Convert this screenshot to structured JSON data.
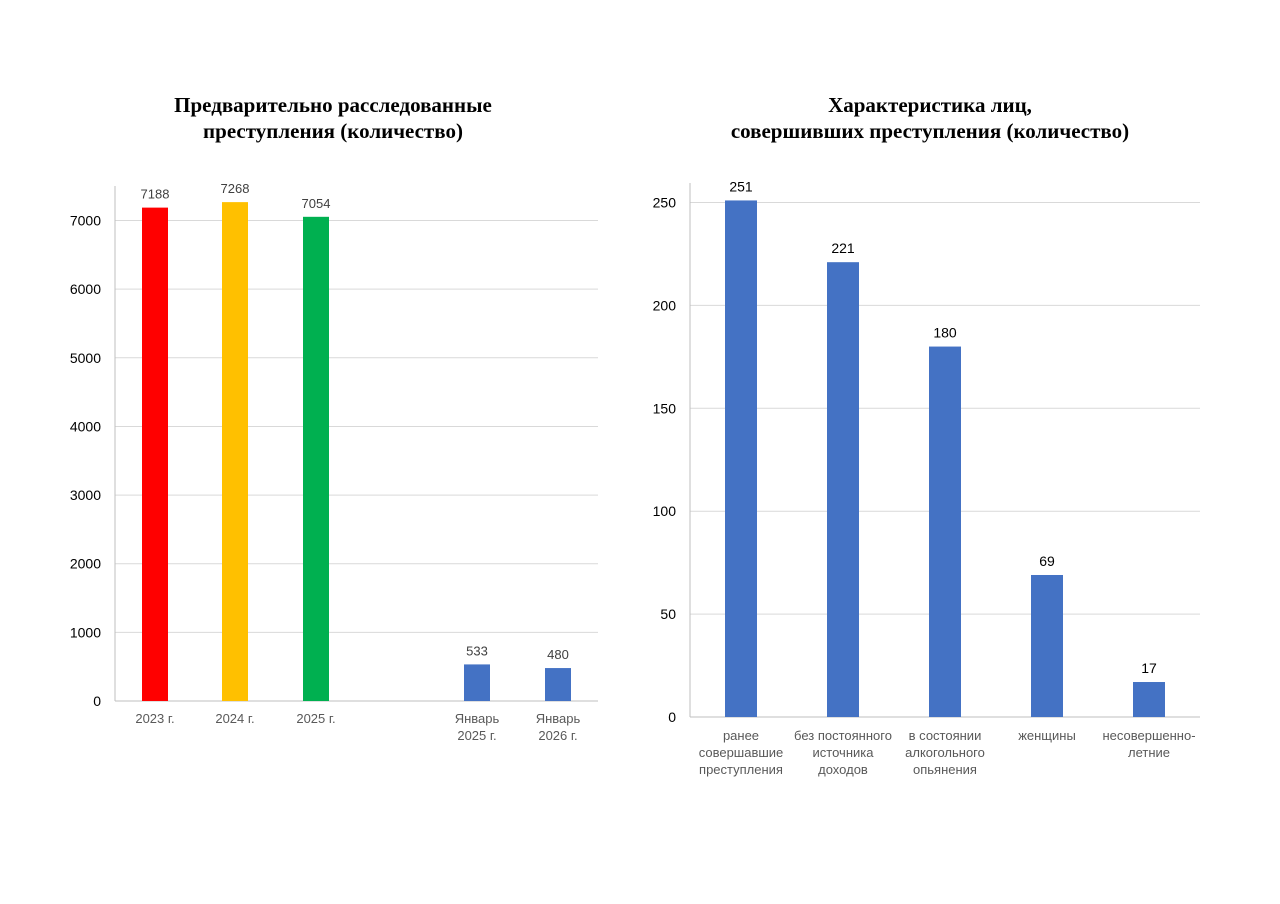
{
  "chart_data": [
    {
      "type": "bar",
      "title_lines": [
        "Предварительно расследованные",
        "преступления (количество)"
      ],
      "categories": [
        [
          "2023 г."
        ],
        [
          "2024 г."
        ],
        [
          "2025 г."
        ],
        [
          "Январь",
          "2025 г."
        ],
        [
          "Январь",
          "2026 г."
        ]
      ],
      "values": [
        7188,
        7268,
        7054,
        533,
        480
      ],
      "bar_colors": [
        "#ff0000",
        "#ffc000",
        "#00b050",
        "#4472c4",
        "#4472c4"
      ],
      "ylim": [
        0,
        7500
      ],
      "yticks": [
        0,
        1000,
        2000,
        3000,
        4000,
        5000,
        6000,
        7000
      ],
      "grid": true,
      "legend": "none"
    },
    {
      "type": "bar",
      "title_lines": [
        "Характеристика лиц,",
        "совершивших преступления (количество)"
      ],
      "categories": [
        [
          "ранее",
          "совершавшие",
          "преступления"
        ],
        [
          "без постоянного",
          "источника",
          "доходов"
        ],
        [
          "в состоянии",
          "алкогольного",
          "опьянения"
        ],
        [
          "женщины"
        ],
        [
          "несовершенно-",
          "летние"
        ]
      ],
      "values": [
        251,
        221,
        180,
        69,
        17
      ],
      "bar_colors": [
        "#4472c4",
        "#4472c4",
        "#4472c4",
        "#4472c4",
        "#4472c4"
      ],
      "ylim": [
        0,
        260
      ],
      "yticks": [
        0,
        50,
        100,
        150,
        200,
        250
      ],
      "grid": true,
      "legend": "none"
    }
  ]
}
